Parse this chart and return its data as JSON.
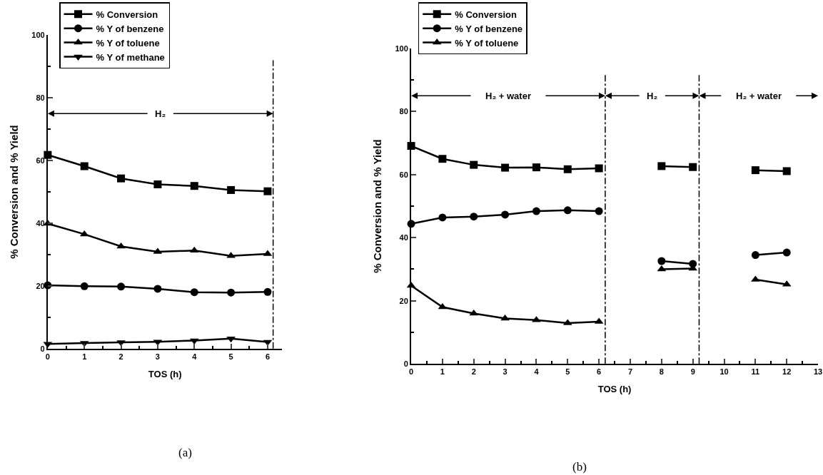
{
  "chart_data": [
    {
      "type": "line",
      "xlabel": "TOS (h)",
      "ylabel": "% Conversion and % Yield",
      "x": [
        0,
        1,
        2,
        3,
        4,
        5,
        6
      ],
      "xlim": [
        0,
        6.4
      ],
      "xticks": [
        0,
        1,
        2,
        3,
        4,
        5,
        6
      ],
      "ylim": [
        0,
        100
      ],
      "yticks": [
        0,
        20,
        40,
        60,
        80,
        100
      ],
      "legend": "top left",
      "line_style": "solid",
      "series": [
        {
          "name": "% Conversion",
          "color": "#000000",
          "marker": "square",
          "values": [
            61.8,
            58.2,
            54.3,
            52.4,
            51.9,
            50.6,
            50.2
          ]
        },
        {
          "name": "% Y of benzene",
          "color": "#000000",
          "marker": "circle",
          "values": [
            20.2,
            19.9,
            19.8,
            19.1,
            18.0,
            17.9,
            18.1
          ]
        },
        {
          "name": "% Y of toluene",
          "color": "#000000",
          "marker": "triangle",
          "values": [
            39.9,
            36.5,
            32.6,
            30.9,
            31.3,
            29.6,
            30.2
          ]
        },
        {
          "name": "% Y of methane",
          "color": "#000000",
          "marker": "triangle-down",
          "values": [
            1.5,
            1.8,
            2.0,
            2.2,
            2.6,
            3.2,
            2.1
          ]
        }
      ],
      "ref_lines": [
        {
          "axis": "x",
          "value": 6.15,
          "label": null,
          "color": "#000000",
          "line_style": "dashed"
        }
      ],
      "annotations": [
        "H₂",
        "(a)"
      ]
    },
    {
      "type": "line",
      "xlabel": "TOS (h)",
      "ylabel": "% Conversion and % Yield",
      "x": [
        0,
        1,
        2,
        3,
        4,
        5,
        6,
        7,
        8,
        9,
        10,
        11,
        12
      ],
      "xlim": [
        0,
        13
      ],
      "xticks": [
        0,
        1,
        2,
        3,
        4,
        5,
        6,
        7,
        8,
        9,
        10,
        11,
        12,
        13
      ],
      "ylim": [
        0,
        100
      ],
      "yticks": [
        0,
        20,
        40,
        60,
        80,
        100
      ],
      "legend": "top left",
      "line_style": "solid",
      "series": [
        {
          "name": "% Conversion",
          "color": "#000000",
          "marker": "square",
          "values": [
            69.1,
            65.0,
            63.1,
            62.2,
            62.3,
            61.7,
            62.0,
            null,
            62.7,
            62.4,
            null,
            61.4,
            61.1
          ]
        },
        {
          "name": "% Y of benzene",
          "color": "#000000",
          "marker": "circle",
          "values": [
            44.4,
            46.4,
            46.7,
            47.3,
            48.4,
            48.7,
            48.4,
            null,
            32.6,
            31.7,
            null,
            34.5,
            35.3
          ]
        },
        {
          "name": "% Y of toluene",
          "color": "#000000",
          "marker": "triangle",
          "values": [
            24.8,
            18.0,
            16.0,
            14.4,
            13.9,
            12.9,
            13.4,
            null,
            30.0,
            30.2,
            null,
            26.7,
            25.2
          ]
        }
      ],
      "ref_lines": [
        {
          "axis": "x",
          "value": 6.2,
          "label": null,
          "color": "#000000",
          "line_style": "dashed"
        },
        {
          "axis": "x",
          "value": 9.2,
          "label": null,
          "color": "#000000",
          "line_style": "dashed"
        }
      ],
      "annotations": [
        "H₂ + water",
        "H₂",
        "H₂ + water",
        "(b)"
      ]
    }
  ]
}
